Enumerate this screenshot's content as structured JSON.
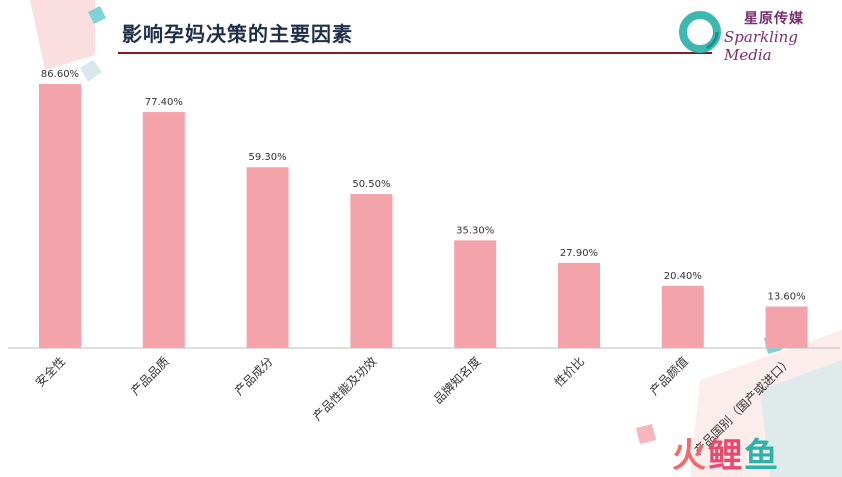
{
  "header": {
    "title": "影响孕妈决策的主要因素",
    "brand_cn": "星原传媒",
    "brand_en": "Sparkling Media"
  },
  "watermark": {
    "part1": "火",
    "part2": "鲤",
    "part3": "鱼"
  },
  "colors": {
    "bar": "#f5a3aa",
    "axis": "#bfbfbf",
    "title": "#1f2f4a",
    "title_rule": "#8b1a1a",
    "brand": "#7a2d6f",
    "label": "#333333"
  },
  "chart_data": {
    "type": "bar",
    "title": "影响孕妈决策的主要因素",
    "xlabel": "",
    "ylabel": "",
    "ylim": [
      0,
      100
    ],
    "grid": false,
    "categories": [
      "安全性",
      "产品品质",
      "产品成分",
      "产品性能及功效",
      "品牌知名度",
      "性价比",
      "产品颜值",
      "产品国别（国产或进口）"
    ],
    "values": [
      86.6,
      77.4,
      59.3,
      50.5,
      35.3,
      27.9,
      20.4,
      13.6
    ],
    "data_labels": [
      "86.60%",
      "77.40%",
      "59.30%",
      "50.50%",
      "35.30%",
      "27.90%",
      "20.40%",
      "13.60%"
    ]
  }
}
